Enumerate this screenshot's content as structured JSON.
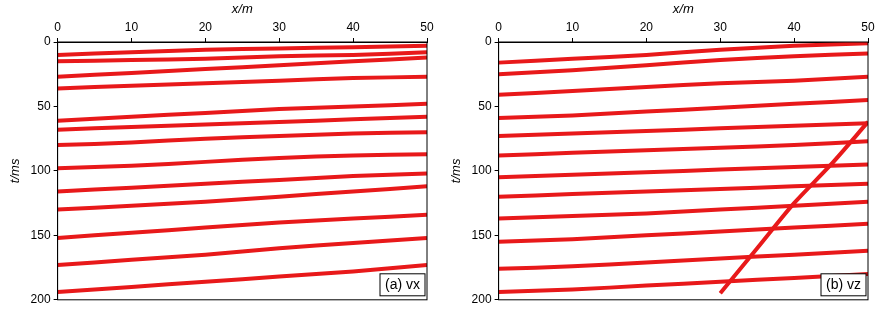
{
  "chart_data": [
    {
      "type": "line",
      "annotation": "(a) vx",
      "x_label": "x/m",
      "y_label": "t/ms",
      "xlim": [
        0,
        50
      ],
      "xticks": [
        0,
        10,
        20,
        30,
        40,
        50
      ],
      "ylim": [
        0,
        200
      ],
      "yticks": [
        0,
        50,
        100,
        150,
        200
      ],
      "grid": false,
      "color": "#e8191a",
      "series": [
        {
          "x": [
            0,
            10,
            20,
            30,
            40,
            50
          ],
          "values": [
            10,
            8,
            6,
            5,
            4,
            3
          ]
        },
        {
          "x": [
            0,
            10,
            20,
            30,
            40,
            50
          ],
          "values": [
            15,
            14,
            13,
            11,
            10,
            8
          ]
        },
        {
          "x": [
            0,
            10,
            20,
            30,
            40,
            50
          ],
          "values": [
            27,
            24,
            21,
            18,
            15,
            12
          ]
        },
        {
          "x": [
            0,
            10,
            20,
            30,
            40,
            50
          ],
          "values": [
            36,
            34,
            32,
            30,
            28,
            27
          ]
        },
        {
          "x": [
            0,
            10,
            20,
            30,
            40,
            50
          ],
          "values": [
            61,
            58,
            55,
            52,
            50,
            48
          ]
        },
        {
          "x": [
            0,
            10,
            20,
            30,
            40,
            50
          ],
          "values": [
            68,
            66,
            64,
            62,
            60,
            58
          ]
        },
        {
          "x": [
            0,
            10,
            20,
            30,
            40,
            50
          ],
          "values": [
            80,
            78,
            75,
            73,
            71,
            70
          ]
        },
        {
          "x": [
            0,
            10,
            20,
            30,
            40,
            50
          ],
          "values": [
            98,
            96,
            93,
            90,
            88,
            87
          ]
        },
        {
          "x": [
            0,
            10,
            20,
            30,
            40,
            50
          ],
          "values": [
            116,
            113,
            110,
            107,
            104,
            102
          ]
        },
        {
          "x": [
            0,
            10,
            20,
            30,
            40,
            50
          ],
          "values": [
            130,
            127,
            124,
            120,
            116,
            112
          ]
        },
        {
          "x": [
            0,
            10,
            20,
            30,
            40,
            50
          ],
          "values": [
            152,
            148,
            144,
            140,
            137,
            134
          ]
        },
        {
          "x": [
            0,
            10,
            20,
            30,
            40,
            50
          ],
          "values": [
            173,
            169,
            165,
            160,
            156,
            152
          ]
        },
        {
          "x": [
            0,
            10,
            20,
            30,
            40,
            50
          ],
          "values": [
            194,
            190,
            186,
            182,
            178,
            173
          ]
        }
      ]
    },
    {
      "type": "line",
      "annotation": "(b) vz",
      "x_label": "x/m",
      "y_label": "t/ms",
      "xlim": [
        0,
        50
      ],
      "xticks": [
        0,
        10,
        20,
        30,
        40,
        50
      ],
      "ylim": [
        0,
        200
      ],
      "yticks": [
        0,
        50,
        100,
        150,
        200
      ],
      "grid": false,
      "color": "#e8191a",
      "series": [
        {
          "x": [
            0,
            10,
            20,
            30,
            40,
            50
          ],
          "values": [
            16,
            13,
            10,
            6,
            3,
            1
          ]
        },
        {
          "x": [
            0,
            10,
            20,
            30,
            40,
            50
          ],
          "values": [
            25,
            22,
            18,
            14,
            11,
            9
          ]
        },
        {
          "x": [
            0,
            10,
            20,
            30,
            40,
            50
          ],
          "values": [
            41,
            38,
            35,
            32,
            30,
            27
          ]
        },
        {
          "x": [
            0,
            10,
            20,
            30,
            40,
            50
          ],
          "values": [
            59,
            57,
            54,
            51,
            48,
            45
          ]
        },
        {
          "x": [
            0,
            10,
            20,
            30,
            40,
            50
          ],
          "values": [
            73,
            71,
            69,
            67,
            65,
            63
          ]
        },
        {
          "x": [
            0,
            10,
            20,
            30,
            40,
            50
          ],
          "values": [
            88,
            86,
            84,
            82,
            80,
            77
          ]
        },
        {
          "x": [
            0,
            10,
            20,
            30,
            40,
            50
          ],
          "values": [
            105,
            103,
            101,
            99,
            97,
            95
          ]
        },
        {
          "x": [
            0,
            10,
            20,
            30,
            40,
            50
          ],
          "values": [
            120,
            118,
            116,
            114,
            112,
            110
          ]
        },
        {
          "x": [
            0,
            10,
            20,
            30,
            40,
            50
          ],
          "values": [
            137,
            135,
            133,
            130,
            127,
            124
          ]
        },
        {
          "x": [
            0,
            10,
            20,
            30,
            40,
            50
          ],
          "values": [
            155,
            153,
            150,
            147,
            144,
            141
          ]
        },
        {
          "x": [
            0,
            10,
            20,
            30,
            40,
            50
          ],
          "values": [
            176,
            174,
            171,
            168,
            165,
            162
          ]
        },
        {
          "x": [
            0,
            10,
            20,
            30,
            40,
            50
          ],
          "values": [
            194,
            192,
            189,
            186,
            183,
            180
          ]
        },
        {
          "x": [
            30,
            35,
            40,
            45,
            50
          ],
          "values": [
            195,
            160,
            125,
            95,
            62
          ]
        }
      ]
    }
  ]
}
